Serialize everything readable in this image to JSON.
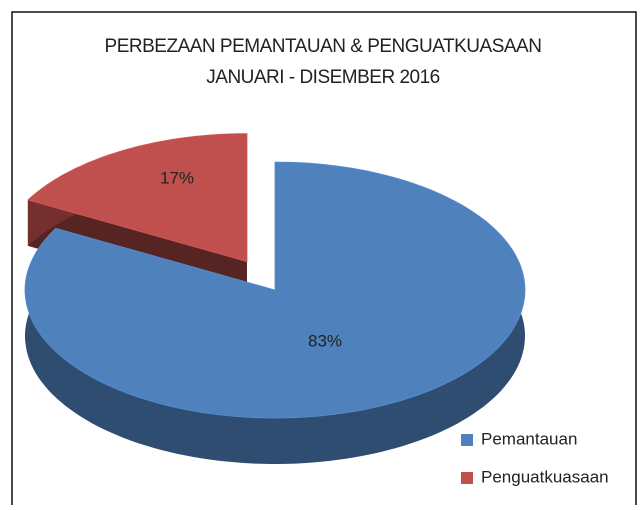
{
  "chart_data": {
    "type": "pie",
    "title": "PERBEZAAN PEMANTAUAN & PENGUATKUASAAN",
    "subtitle": "JANUARI - DISEMBER 2016",
    "categories": [
      "Pemantauan",
      "Penguatkuasaan"
    ],
    "values": [
      83,
      17
    ],
    "value_labels": [
      "83%",
      "17%"
    ],
    "colors": [
      "#4f81bd",
      "#c0504d"
    ],
    "legend": "bottom-right"
  }
}
